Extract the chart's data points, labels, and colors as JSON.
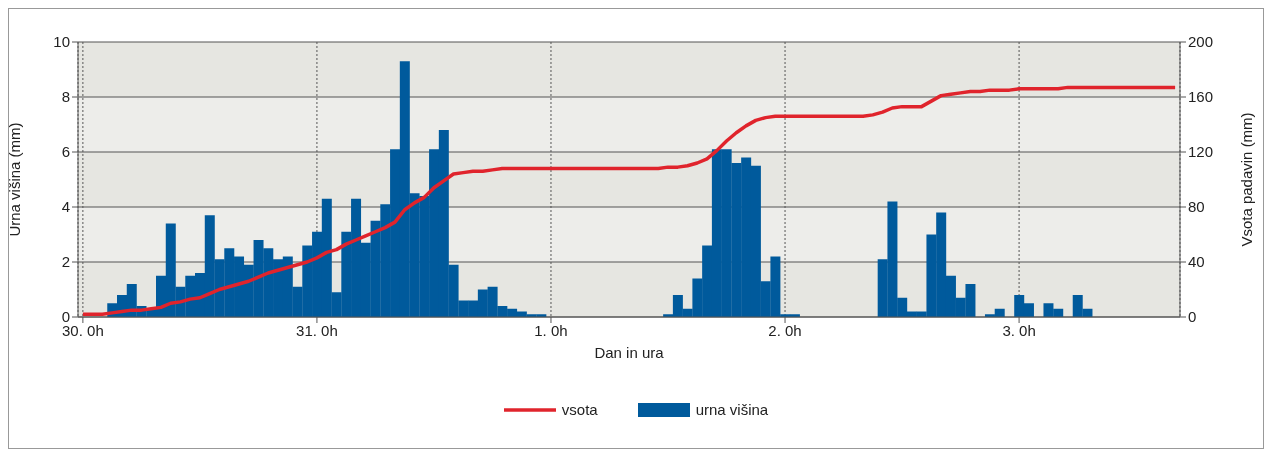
{
  "chart_data": {
    "type": "bar",
    "xlabel": "Dan in ura",
    "ylabel": "Urna višina (mm)",
    "y2label": "Vsota padavin (mm)",
    "categories": [
      "30. 0h",
      null,
      null,
      null,
      null,
      null,
      null,
      null,
      null,
      null,
      null,
      null,
      null,
      null,
      null,
      null,
      null,
      null,
      null,
      null,
      null,
      null,
      null,
      null,
      "31. 0h",
      null,
      null,
      null,
      null,
      null,
      null,
      null,
      null,
      null,
      null,
      null,
      null,
      null,
      null,
      null,
      null,
      null,
      null,
      null,
      null,
      null,
      null,
      null,
      "1. 0h",
      null,
      null,
      null,
      null,
      null,
      null,
      null,
      null,
      null,
      null,
      null,
      null,
      null,
      null,
      null,
      null,
      null,
      null,
      null,
      null,
      null,
      null,
      null,
      "2. 0h",
      null,
      null,
      null,
      null,
      null,
      null,
      null,
      null,
      null,
      null,
      null,
      null,
      null,
      null,
      null,
      null,
      null,
      null,
      null,
      null,
      null,
      null,
      null,
      "3. 0h",
      null,
      null,
      null,
      null,
      null,
      null,
      null,
      null,
      null,
      null,
      null,
      null,
      null,
      null,
      null,
      null
    ],
    "ylim": [
      0,
      10
    ],
    "yticks": [
      0,
      2,
      4,
      6,
      8,
      10
    ],
    "y2lim": [
      0,
      200
    ],
    "y2ticks": [
      0,
      40,
      80,
      120,
      160,
      200
    ],
    "grid": true,
    "legend": "bottom",
    "series": [
      {
        "name": "vsota",
        "type": "line",
        "axis": "y2",
        "color": "#e0242c",
        "marker": "none",
        "line_style": "solid",
        "values": [
          2,
          2,
          2,
          3,
          4,
          5,
          5,
          6,
          7,
          10,
          11,
          13,
          14,
          17,
          20,
          22,
          24,
          26,
          29,
          32,
          34,
          36,
          38,
          40,
          43,
          47,
          49,
          53,
          56,
          59,
          62,
          65,
          69,
          78,
          83,
          87,
          94,
          99,
          104,
          105,
          106,
          106,
          107,
          108,
          108,
          108,
          108,
          108,
          108,
          108,
          108,
          108,
          108,
          108,
          108,
          108,
          108,
          108,
          108,
          108,
          109,
          109,
          110,
          112,
          115,
          121,
          128,
          134,
          139,
          143,
          145,
          146,
          146,
          146,
          146,
          146,
          146,
          146,
          146,
          146,
          146,
          147,
          149,
          152,
          153,
          153,
          153,
          157,
          161,
          162,
          163,
          164,
          164,
          165,
          165,
          165,
          166,
          166,
          166,
          166,
          166,
          167,
          167,
          167,
          167,
          167,
          167,
          167,
          167,
          167,
          167,
          167,
          167
        ]
      },
      {
        "name": "urna višina",
        "color": "#005a9c",
        "values": [
          null,
          null,
          null,
          0.5,
          0.8,
          1.2,
          0.4,
          0.3,
          1.5,
          3.4,
          1.1,
          1.5,
          1.6,
          3.7,
          2.1,
          2.5,
          2.2,
          1.9,
          2.8,
          2.5,
          2.1,
          2.2,
          1.1,
          2.6,
          3.1,
          4.3,
          0.9,
          3.1,
          4.3,
          2.7,
          3.5,
          4.1,
          6.1,
          9.3,
          4.5,
          4.4,
          6.1,
          6.8,
          1.9,
          0.6,
          0.6,
          1.0,
          1.1,
          0.4,
          0.3,
          0.2,
          0.1,
          0.1,
          null,
          null,
          null,
          null,
          null,
          null,
          null,
          null,
          null,
          null,
          null,
          null,
          0.1,
          0.8,
          0.3,
          1.4,
          2.6,
          6.1,
          6.1,
          5.6,
          5.8,
          5.5,
          1.3,
          2.2,
          0.1,
          0.1,
          null,
          null,
          null,
          null,
          null,
          null,
          null,
          null,
          2.1,
          4.2,
          0.7,
          0.2,
          0.2,
          3.0,
          3.8,
          1.5,
          0.7,
          1.2,
          null,
          0.1,
          0.3,
          null,
          0.8,
          0.5,
          null,
          0.5,
          0.3,
          null,
          0.8,
          0.3,
          null,
          null,
          null,
          null,
          null,
          null,
          null,
          null,
          null
        ]
      }
    ]
  }
}
